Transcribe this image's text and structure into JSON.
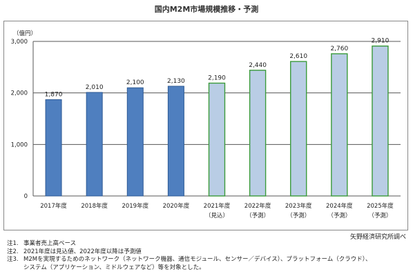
{
  "chart_data": {
    "type": "bar",
    "title": "国内M2M市場規模推移・予測",
    "ylabel": "（億円）",
    "ylim": [
      0,
      3000
    ],
    "yticks": [
      0,
      1000,
      2000,
      3000
    ],
    "ytick_labels": [
      "0",
      "1,000",
      "2,000",
      "3,000"
    ],
    "categories": [
      "2017年度",
      "2018年度",
      "2019年度",
      "2020年度",
      "2021年度",
      "2022年度",
      "2023年度",
      "2024年度",
      "2025年度"
    ],
    "category_sublabels": [
      "",
      "",
      "",
      "",
      "（見込）",
      "（予測）",
      "（予測）",
      "（予測）",
      "（予測）"
    ],
    "values": [
      1870,
      2010,
      2100,
      2130,
      2190,
      2440,
      2610,
      2760,
      2910
    ],
    "value_labels": [
      "1,870",
      "2,010",
      "2,100",
      "2,130",
      "2,190",
      "2,440",
      "2,610",
      "2,760",
      "2,910"
    ],
    "grid": true,
    "colors": {
      "actual_fill": "#4f7fbf",
      "actual_stroke": "#2e5a94",
      "forecast_fill": "#b9cde5",
      "forecast_stroke": "#3a9a3a",
      "grid": "#555555"
    },
    "forecast_from_index": 4
  },
  "source": "矢野経済研究所調べ",
  "notes": [
    {
      "mark": "注1.",
      "text": "事業者売上高ベース"
    },
    {
      "mark": "注2.",
      "text": "2021年度は見込値、2022年度以降は予測値"
    },
    {
      "mark": "注3.",
      "text": "M2Mを実現するためのネットワーク（ネットワーク機器、通信モジュール、センサー／デバイス）、プラットフォーム（クラウド）、"
    },
    {
      "mark": "",
      "text": "システム（アプリケーション、ミドルウェアなど）等を対象とした。"
    }
  ]
}
